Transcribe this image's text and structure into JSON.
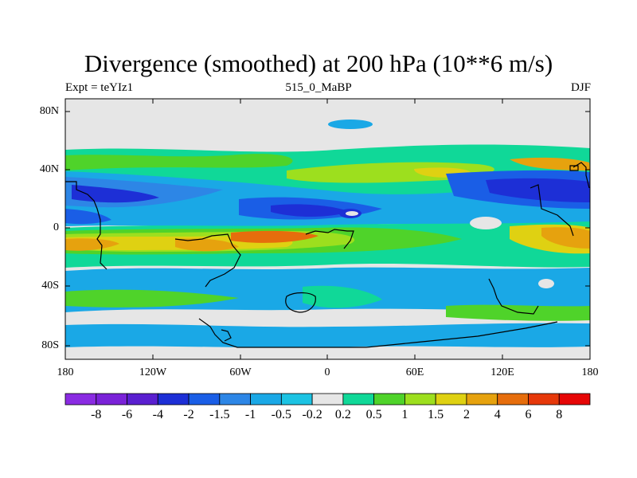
{
  "title": "Divergence (smoothed) at 200 hPa (10**6 m/s)",
  "subtitle": {
    "left": "Expt = teYIz1",
    "center": "515_0_MaBP",
    "right": "DJF"
  },
  "axes": {
    "y_ticks": [
      "80N",
      "40N",
      "0",
      "40S",
      "80S"
    ],
    "x_ticks": [
      "180",
      "120W",
      "60W",
      "0",
      "60E",
      "120E",
      "180"
    ]
  },
  "colorbar": {
    "labels": [
      "-8",
      "-6",
      "-4",
      "-2",
      "-1.5",
      "-1",
      "-0.5",
      "-0.2",
      "0.2",
      "0.5",
      "1",
      "1.5",
      "2",
      "4",
      "6",
      "8"
    ],
    "colors": [
      "#8a2be2",
      "#7a22d8",
      "#5a1fd0",
      "#1d2fd6",
      "#1a5ee6",
      "#2d86e6",
      "#1aa8e6",
      "#1cc3e3",
      "#e6e6e6",
      "#10d898",
      "#4fd32a",
      "#9ddf1e",
      "#dfd112",
      "#e6a20e",
      "#e66d0c",
      "#e6380a",
      "#e60606"
    ]
  },
  "colors": {
    "land_gray": "#e6e6e6",
    "coast": "#000000"
  }
}
